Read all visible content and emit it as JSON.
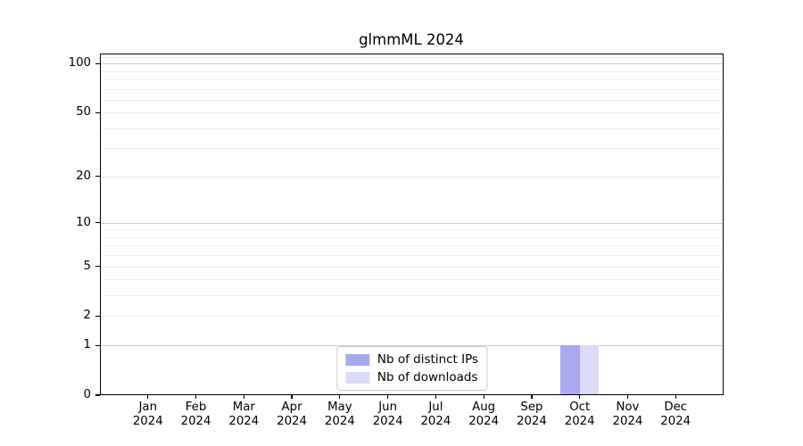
{
  "chart_data": {
    "type": "bar",
    "title": "glmmML 2024",
    "categories": [
      {
        "month": "Jan",
        "year": "2024"
      },
      {
        "month": "Feb",
        "year": "2024"
      },
      {
        "month": "Mar",
        "year": "2024"
      },
      {
        "month": "Apr",
        "year": "2024"
      },
      {
        "month": "May",
        "year": "2024"
      },
      {
        "month": "Jun",
        "year": "2024"
      },
      {
        "month": "Jul",
        "year": "2024"
      },
      {
        "month": "Aug",
        "year": "2024"
      },
      {
        "month": "Sep",
        "year": "2024"
      },
      {
        "month": "Oct",
        "year": "2024"
      },
      {
        "month": "Nov",
        "year": "2024"
      },
      {
        "month": "Dec",
        "year": "2024"
      }
    ],
    "series": [
      {
        "name": "Nb of distinct IPs",
        "color": "#a9a9f1",
        "values": [
          0,
          0,
          0,
          0,
          0,
          0,
          0,
          0,
          0,
          1,
          0,
          0
        ]
      },
      {
        "name": "Nb of downloads",
        "color": "#dbdbf8",
        "values": [
          0,
          0,
          0,
          0,
          0,
          0,
          0,
          0,
          0,
          1,
          0,
          0
        ]
      }
    ],
    "y_axis": {
      "scale": "log1p",
      "range": [
        0,
        115
      ],
      "ticks": [
        0,
        1,
        2,
        5,
        10,
        20,
        50,
        100
      ],
      "major_gridlines": [
        1,
        10,
        100
      ],
      "minor_gridlines": [
        2,
        3,
        4,
        5,
        6,
        7,
        8,
        9,
        20,
        30,
        40,
        50,
        60,
        70,
        80,
        90,
        110
      ]
    },
    "grid": true,
    "legend_position": "lower center"
  }
}
